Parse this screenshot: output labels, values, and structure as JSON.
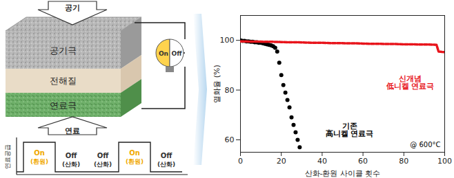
{
  "chart_data": {
    "type": "scatter",
    "x_label": "산화-환원 사이클 횟수",
    "y_label": "열화율 (%)",
    "xlim": [
      0,
      100
    ],
    "xticks": [
      0,
      20,
      40,
      60,
      80,
      100
    ],
    "ylim": [
      55,
      110
    ],
    "yticks": [
      60,
      80,
      100
    ],
    "grid": false,
    "annotations": [
      {
        "text": "@ 600°C",
        "color": "#000000"
      }
    ],
    "series": [
      {
        "name": "기존 高니켈 연료극",
        "color": "#000000",
        "type": "scatter",
        "marker": "circle",
        "x": [
          0,
          1,
          2,
          3,
          4,
          5,
          6,
          7,
          8,
          9,
          10,
          11,
          12,
          13,
          14,
          15,
          16,
          17,
          18,
          19,
          20,
          21,
          22,
          23,
          24,
          25,
          26,
          27,
          28,
          29
        ],
        "values": [
          100,
          99.8,
          99.8,
          99.6,
          99.6,
          99.4,
          99.4,
          99.2,
          99.2,
          99,
          99,
          98.8,
          98.6,
          98.4,
          98.2,
          98,
          97.6,
          97,
          95.5,
          91,
          86,
          82,
          79,
          76,
          73,
          69,
          66,
          63,
          60,
          57
        ]
      },
      {
        "name": "신개념 低니켈 연료극",
        "color": "#e8141b",
        "type": "line",
        "line_style": "dashed",
        "x": [
          0,
          4,
          8,
          12,
          16,
          20,
          24,
          28,
          32,
          36,
          40,
          44,
          48,
          52,
          56,
          60,
          64,
          68,
          72,
          76,
          80,
          84,
          88,
          92,
          96,
          97,
          98,
          99,
          100
        ],
        "values": [
          99.6,
          99.5,
          99.5,
          99.4,
          99.4,
          99.3,
          99.2,
          99.2,
          99.1,
          99,
          99,
          98.9,
          98.9,
          98.8,
          98.8,
          98.7,
          98.6,
          98.6,
          98.5,
          98.5,
          98.4,
          98.4,
          98.3,
          98.3,
          98.2,
          95.5,
          95.4,
          95.3,
          95.3
        ]
      }
    ]
  },
  "diagram": {
    "air": "공기",
    "cathode": "공기극",
    "electrolyte": "전해질",
    "anode": "연료극",
    "fuel": "연료",
    "bulb": [
      "On",
      "Off"
    ],
    "fuel_supply": "연료공급",
    "phases": [
      {
        "state": "On",
        "process": "(환원)"
      },
      {
        "state": "Off",
        "process": "(산화)"
      },
      {
        "state": "Off",
        "process": "(산화)"
      },
      {
        "state": "On",
        "process": "(환원)"
      },
      {
        "state": "Off",
        "process": "(산화)"
      }
    ]
  }
}
